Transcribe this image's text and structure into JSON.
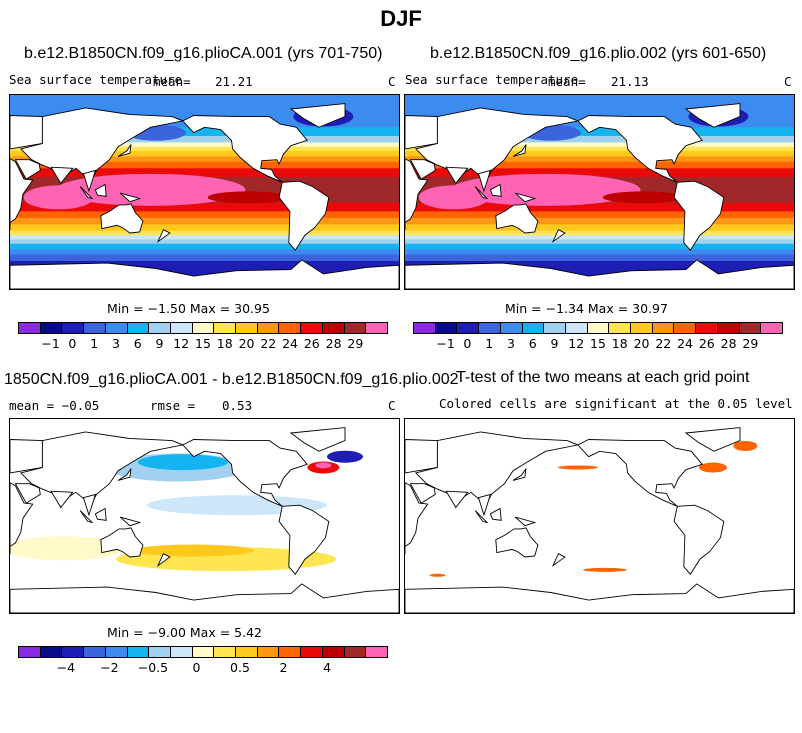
{
  "title": "DJF",
  "panels": [
    {
      "id": "p1",
      "title": "b.e12.B1850CN.f09_g16.plioCA.001 (yrs 701-750)",
      "left_label": "Sea surface temperature",
      "stat_label": "mean=",
      "stat_value": "21.21",
      "units": "C",
      "minmax": "Min =  −1.50 Max =  30.95"
    },
    {
      "id": "p2",
      "title": "b.e12.B1850CN.f09_g16.plio.002 (yrs 601-650)",
      "left_label": "Sea surface temperature",
      "stat_label": "mean=",
      "stat_value": "21.13",
      "units": "C",
      "minmax": "Min =  −1.34 Max =  30.97"
    },
    {
      "id": "p3",
      "title": "1850CN.f09_g16.plioCA.001 - b.e12.B1850CN.f09_g16.plio.002",
      "left_label": "mean =  −0.05",
      "stat_label": "rmse =",
      "stat_value": "0.53",
      "units": "C",
      "minmax": "Min =  −9.00 Max =   5.42"
    },
    {
      "id": "p4",
      "title": "T-test of the two means at each grid point",
      "subtitle": "Colored cells are significant at the 0.05 level"
    }
  ],
  "colorbar_abs": {
    "colors": [
      "#8a2be2",
      "#0a0a8f",
      "#1e1eb4",
      "#3c64dc",
      "#3c8cf0",
      "#14b4f0",
      "#a0d2f0",
      "#cde6fa",
      "#fffac8",
      "#ffe650",
      "#ffc81e",
      "#ff9614",
      "#ff6400",
      "#eb0a0a",
      "#be0000",
      "#a02828",
      "#ff64b4"
    ],
    "labels": [
      "−1",
      "0",
      "1",
      "3",
      "6",
      "9",
      "12",
      "15",
      "18",
      "20",
      "22",
      "24",
      "26",
      "28",
      "29"
    ]
  },
  "colorbar_diff": {
    "colors": [
      "#8a2be2",
      "#0a0a8f",
      "#1e1eb4",
      "#3c64dc",
      "#3c8cf0",
      "#14b4f0",
      "#a0d2f0",
      "#cde6fa",
      "#fffac8",
      "#ffe650",
      "#ffc81e",
      "#ff9614",
      "#ff6400",
      "#eb0a0a",
      "#be0000",
      "#a02828",
      "#ff64b4"
    ],
    "labels": [
      "−4",
      "−2",
      "−0.5",
      "0",
      "0.5",
      "2",
      "4"
    ]
  }
}
